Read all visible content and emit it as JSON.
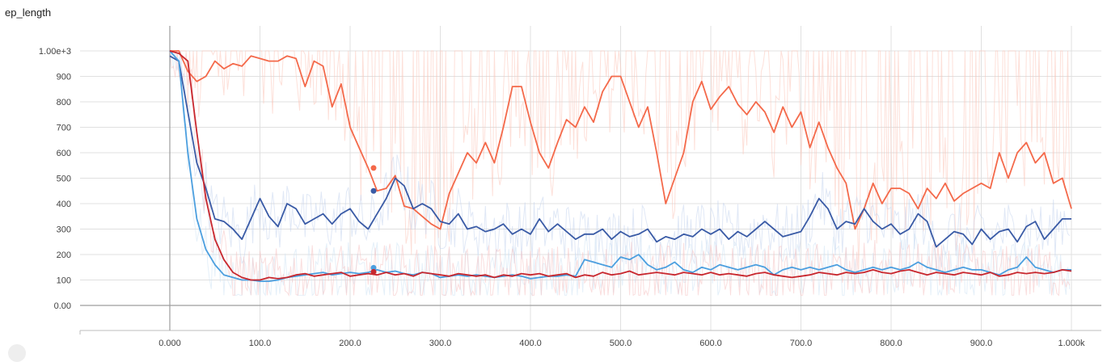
{
  "chart_data": {
    "type": "line",
    "title": "ep_length",
    "xlabel": "",
    "ylabel": "",
    "xlim": [
      -100,
      1000
    ],
    "ylim": [
      -100,
      1050
    ],
    "x_ticks": [
      {
        "value": 0,
        "label": "0.000"
      },
      {
        "value": 100,
        "label": "100.0"
      },
      {
        "value": 200,
        "label": "200.0"
      },
      {
        "value": 300,
        "label": "300.0"
      },
      {
        "value": 400,
        "label": "400.0"
      },
      {
        "value": 500,
        "label": "500.0"
      },
      {
        "value": 600,
        "label": "600.0"
      },
      {
        "value": 700,
        "label": "700.0"
      },
      {
        "value": 800,
        "label": "800.0"
      },
      {
        "value": 900,
        "label": "900.0"
      },
      {
        "value": 1000,
        "label": "1.000k"
      }
    ],
    "y_ticks": [
      {
        "value": 0,
        "label": "0.00"
      },
      {
        "value": 100,
        "label": "100"
      },
      {
        "value": 200,
        "label": "200"
      },
      {
        "value": 300,
        "label": "300"
      },
      {
        "value": 400,
        "label": "400"
      },
      {
        "value": 500,
        "label": "500"
      },
      {
        "value": 600,
        "label": "600"
      },
      {
        "value": 700,
        "label": "700"
      },
      {
        "value": 800,
        "label": "800"
      },
      {
        "value": 900,
        "label": "900"
      },
      {
        "value": 1000,
        "label": "1.00e+3"
      }
    ],
    "grid": true,
    "legend": "none",
    "series": [
      {
        "color": "#f4694a",
        "raw_color": "#fbc7b9",
        "x": [
          0,
          10,
          20,
          30,
          40,
          50,
          60,
          70,
          80,
          90,
          100,
          110,
          120,
          130,
          140,
          150,
          160,
          170,
          180,
          190,
          200,
          210,
          220,
          230,
          240,
          250,
          260,
          270,
          280,
          290,
          300,
          310,
          320,
          330,
          340,
          350,
          360,
          370,
          380,
          390,
          400,
          410,
          420,
          430,
          440,
          450,
          460,
          470,
          480,
          490,
          500,
          510,
          520,
          530,
          540,
          550,
          560,
          570,
          580,
          590,
          600,
          610,
          620,
          630,
          640,
          650,
          660,
          670,
          680,
          690,
          700,
          710,
          720,
          730,
          740,
          750,
          760,
          770,
          780,
          790,
          800,
          810,
          820,
          830,
          840,
          850,
          860,
          870,
          880,
          890,
          900,
          910,
          920,
          930,
          940,
          950,
          960,
          970,
          980,
          990,
          1000
        ],
        "y": [
          1000,
          1000,
          920,
          880,
          900,
          960,
          930,
          950,
          940,
          980,
          970,
          960,
          960,
          980,
          970,
          860,
          960,
          940,
          780,
          870,
          700,
          620,
          540,
          450,
          460,
          510,
          390,
          380,
          350,
          320,
          300,
          440,
          520,
          600,
          560,
          640,
          560,
          700,
          860,
          860,
          720,
          600,
          540,
          640,
          730,
          700,
          780,
          720,
          840,
          900,
          900,
          800,
          700,
          780,
          600,
          400,
          500,
          600,
          800,
          880,
          770,
          820,
          860,
          790,
          750,
          800,
          760,
          680,
          780,
          700,
          760,
          620,
          720,
          620,
          540,
          480,
          300,
          380,
          480,
          400,
          460,
          460,
          440,
          380,
          460,
          420,
          480,
          410,
          440,
          460,
          480,
          460,
          600,
          500,
          600,
          640,
          560,
          600,
          480,
          500,
          380
        ]
      },
      {
        "color": "#3a5ba6",
        "raw_color": "#c6d5ee",
        "x": [
          0,
          10,
          20,
          30,
          40,
          50,
          60,
          70,
          80,
          90,
          100,
          110,
          120,
          130,
          140,
          150,
          160,
          170,
          180,
          190,
          200,
          210,
          220,
          230,
          240,
          250,
          260,
          270,
          280,
          290,
          300,
          310,
          320,
          330,
          340,
          350,
          360,
          370,
          380,
          390,
          400,
          410,
          420,
          430,
          440,
          450,
          460,
          470,
          480,
          490,
          500,
          510,
          520,
          530,
          540,
          550,
          560,
          570,
          580,
          590,
          600,
          610,
          620,
          630,
          640,
          650,
          660,
          670,
          680,
          690,
          700,
          710,
          720,
          730,
          740,
          750,
          760,
          770,
          780,
          790,
          800,
          810,
          820,
          830,
          840,
          850,
          860,
          870,
          880,
          890,
          900,
          910,
          920,
          930,
          940,
          950,
          960,
          970,
          980,
          990,
          1000
        ],
        "y": [
          980,
          960,
          760,
          560,
          460,
          340,
          330,
          300,
          260,
          340,
          420,
          350,
          310,
          400,
          380,
          320,
          340,
          360,
          320,
          360,
          380,
          330,
          300,
          360,
          420,
          500,
          470,
          380,
          400,
          380,
          330,
          320,
          360,
          300,
          310,
          290,
          300,
          320,
          280,
          300,
          280,
          340,
          290,
          320,
          290,
          260,
          280,
          280,
          300,
          260,
          290,
          270,
          280,
          300,
          250,
          270,
          260,
          280,
          270,
          300,
          280,
          300,
          260,
          290,
          270,
          300,
          330,
          300,
          270,
          280,
          290,
          350,
          420,
          380,
          300,
          330,
          320,
          380,
          330,
          300,
          320,
          280,
          300,
          360,
          330,
          230,
          260,
          290,
          280,
          240,
          300,
          260,
          290,
          300,
          250,
          310,
          330,
          260,
          300,
          340,
          340
        ]
      },
      {
        "color": "#4c9fdf",
        "raw_color": "#cfe3f4",
        "x": [
          0,
          10,
          20,
          30,
          40,
          50,
          60,
          70,
          80,
          90,
          100,
          110,
          120,
          130,
          140,
          150,
          160,
          170,
          180,
          190,
          200,
          210,
          220,
          230,
          240,
          250,
          260,
          270,
          280,
          290,
          300,
          310,
          320,
          330,
          340,
          350,
          360,
          370,
          380,
          390,
          400,
          410,
          420,
          430,
          440,
          450,
          460,
          470,
          480,
          490,
          500,
          510,
          520,
          530,
          540,
          550,
          560,
          570,
          580,
          590,
          600,
          610,
          620,
          630,
          640,
          650,
          660,
          670,
          680,
          690,
          700,
          710,
          720,
          730,
          740,
          750,
          760,
          770,
          780,
          790,
          800,
          810,
          820,
          830,
          840,
          850,
          860,
          870,
          880,
          890,
          900,
          910,
          920,
          930,
          940,
          950,
          960,
          970,
          980,
          990,
          1000
        ],
        "y": [
          1000,
          960,
          600,
          340,
          220,
          160,
          120,
          110,
          100,
          100,
          95,
          95,
          100,
          110,
          115,
          120,
          125,
          130,
          120,
          125,
          130,
          125,
          130,
          140,
          130,
          135,
          125,
          120,
          130,
          125,
          110,
          115,
          120,
          115,
          120,
          115,
          110,
          115,
          120,
          115,
          105,
          110,
          115,
          115,
          120,
          115,
          180,
          170,
          160,
          150,
          190,
          180,
          200,
          160,
          140,
          150,
          170,
          140,
          130,
          150,
          140,
          160,
          150,
          140,
          150,
          160,
          150,
          120,
          140,
          150,
          140,
          150,
          140,
          150,
          160,
          140,
          130,
          140,
          150,
          140,
          150,
          140,
          150,
          170,
          150,
          140,
          130,
          140,
          150,
          140,
          140,
          130,
          120,
          140,
          150,
          190,
          150,
          140,
          130,
          140,
          140
        ]
      },
      {
        "color": "#c8272e",
        "raw_color": "#f5c3c3",
        "x": [
          0,
          10,
          20,
          30,
          40,
          50,
          60,
          70,
          80,
          90,
          100,
          110,
          120,
          130,
          140,
          150,
          160,
          170,
          180,
          190,
          200,
          210,
          220,
          230,
          240,
          250,
          260,
          270,
          280,
          290,
          300,
          310,
          320,
          330,
          340,
          350,
          360,
          370,
          380,
          390,
          400,
          410,
          420,
          430,
          440,
          450,
          460,
          470,
          480,
          490,
          500,
          510,
          520,
          530,
          540,
          550,
          560,
          570,
          580,
          590,
          600,
          610,
          620,
          630,
          640,
          650,
          660,
          670,
          680,
          690,
          700,
          710,
          720,
          730,
          740,
          750,
          760,
          770,
          780,
          790,
          800,
          810,
          820,
          830,
          840,
          850,
          860,
          870,
          880,
          890,
          900,
          910,
          920,
          930,
          940,
          950,
          960,
          970,
          980,
          990,
          1000
        ],
        "y": [
          1000,
          990,
          960,
          680,
          420,
          260,
          180,
          130,
          110,
          100,
          100,
          110,
          105,
          110,
          120,
          125,
          115,
          120,
          125,
          130,
          115,
          120,
          125,
          120,
          130,
          120,
          125,
          115,
          130,
          125,
          120,
          115,
          125,
          120,
          115,
          120,
          110,
          120,
          115,
          125,
          120,
          125,
          115,
          120,
          125,
          110,
          120,
          115,
          130,
          120,
          125,
          135,
          120,
          125,
          130,
          125,
          120,
          130,
          125,
          120,
          130,
          120,
          125,
          120,
          115,
          125,
          130,
          120,
          115,
          110,
          115,
          120,
          130,
          125,
          120,
          130,
          125,
          130,
          140,
          130,
          125,
          135,
          140,
          130,
          120,
          130,
          125,
          120,
          130,
          125,
          120,
          130,
          115,
          120,
          130,
          125,
          130,
          125,
          130,
          140,
          135
        ]
      }
    ]
  }
}
